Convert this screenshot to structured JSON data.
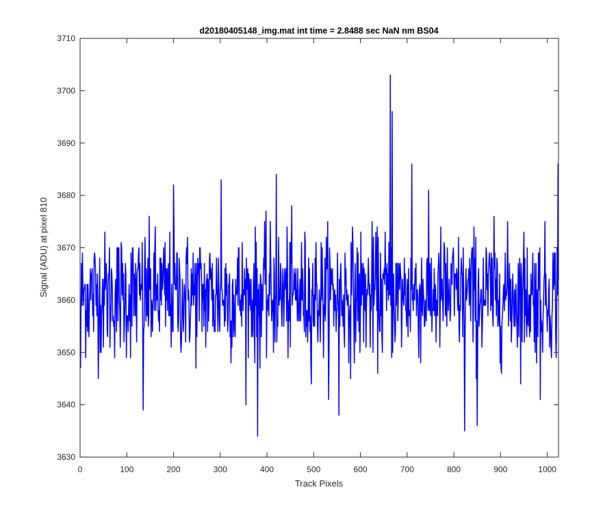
{
  "chart_data": {
    "type": "line",
    "title": "d20180405148_img.mat int time = 2.8488 sec  NaN nm BS04",
    "xlabel": "Track Pixels",
    "ylabel": "Signal (ADU) at pixel 810",
    "xlim": [
      0,
      1024
    ],
    "ylim": [
      3630,
      3710
    ],
    "x_ticks": [
      "0",
      "100",
      "200",
      "300",
      "400",
      "500",
      "600",
      "700",
      "800",
      "900",
      "1000"
    ],
    "y_ticks": [
      "3630",
      "3640",
      "3650",
      "3660",
      "3670",
      "3680",
      "3690",
      "3700",
      "3710"
    ],
    "grid": false,
    "legend": "none",
    "series": [
      {
        "color": "#0000ff",
        "x_start": 1,
        "x_step": 1,
        "count": 1024,
        "baseline": 3661,
        "noise_std": 6,
        "notable_points": [
          {
            "x": 1,
            "y": 3647
          },
          {
            "x": 135,
            "y": 3639
          },
          {
            "x": 200,
            "y": 3682
          },
          {
            "x": 302,
            "y": 3683
          },
          {
            "x": 380,
            "y": 3634
          },
          {
            "x": 420,
            "y": 3684
          },
          {
            "x": 554,
            "y": 3638
          },
          {
            "x": 664,
            "y": 3703
          },
          {
            "x": 668,
            "y": 3696
          },
          {
            "x": 710,
            "y": 3686
          },
          {
            "x": 823,
            "y": 3635
          },
          {
            "x": 850,
            "y": 3636
          },
          {
            "x": 985,
            "y": 3641
          },
          {
            "x": 1023,
            "y": 3686
          }
        ]
      }
    ]
  }
}
